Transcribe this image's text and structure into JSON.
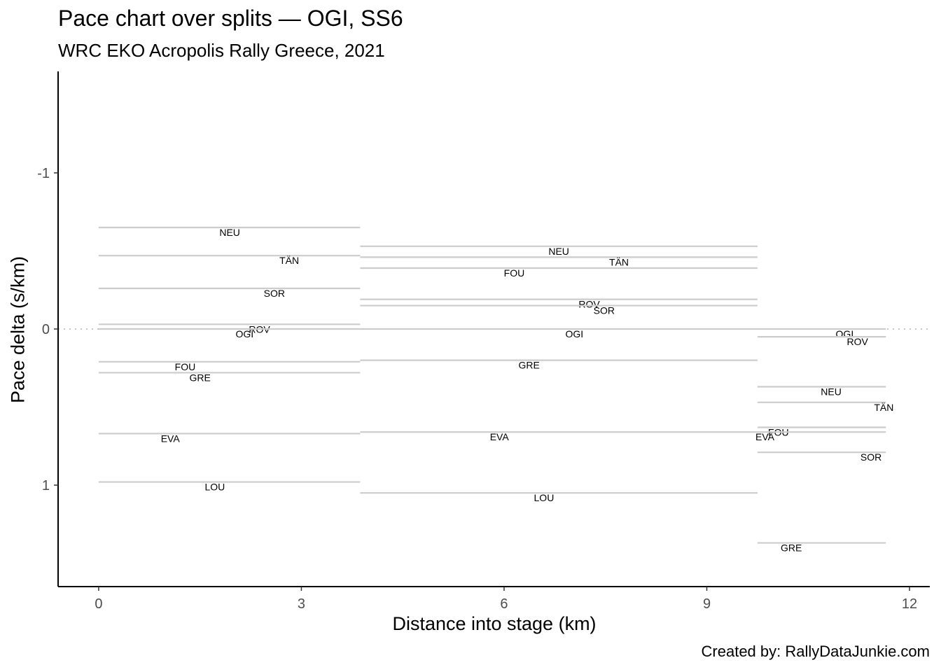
{
  "title": "Pace chart over splits — OGI, SS6",
  "subtitle": "WRC EKO Acropolis Rally Greece, 2021",
  "caption": "Created by: RallyDataJunkie.com",
  "chart_data": {
    "type": "line",
    "title": "Pace chart over splits — OGI, SS6",
    "subtitle": "WRC EKO Acropolis Rally Greece, 2021",
    "xlabel": "Distance into stage (km)",
    "ylabel": "Pace delta (s/km)",
    "xlim": [
      -0.6,
      12.3
    ],
    "ylim": [
      -1.65,
      1.65
    ],
    "y_reversed": true,
    "x_ticks": [
      0,
      3,
      6,
      9,
      12
    ],
    "x_tick_labels": [
      "0",
      "3",
      "6",
      "9",
      "12"
    ],
    "y_ticks": [
      -1,
      0,
      1
    ],
    "y_tick_labels": [
      "-1",
      "0",
      "1"
    ],
    "reference_line_y": 0,
    "grid": false,
    "legend": "none",
    "line_color": "#cccccc",
    "reference_line_color": "#c8c8c8",
    "splits": [
      {
        "x_start": 0.0,
        "x_end": 3.87,
        "drivers": [
          {
            "code": "NEU",
            "pace": -0.65,
            "label_x": 1.94
          },
          {
            "code": "TÄN",
            "pace": -0.47,
            "label_x": 2.82
          },
          {
            "code": "SOR",
            "pace": -0.26,
            "label_x": 2.6
          },
          {
            "code": "ROV",
            "pace": -0.03,
            "label_x": 2.38
          },
          {
            "code": "OGI",
            "pace": 0.0,
            "label_x": 2.16
          },
          {
            "code": "FOU",
            "pace": 0.21,
            "label_x": 1.28
          },
          {
            "code": "GRE",
            "pace": 0.28,
            "label_x": 1.5
          },
          {
            "code": "EVA",
            "pace": 0.67,
            "label_x": 1.06
          },
          {
            "code": "LOU",
            "pace": 0.98,
            "label_x": 1.72
          }
        ]
      },
      {
        "x_start": 3.87,
        "x_end": 9.75,
        "drivers": [
          {
            "code": "NEU",
            "pace": -0.53,
            "label_x": 6.81
          },
          {
            "code": "TÄN",
            "pace": -0.46,
            "label_x": 7.7
          },
          {
            "code": "FOU",
            "pace": -0.39,
            "label_x": 6.15
          },
          {
            "code": "ROV",
            "pace": -0.19,
            "label_x": 7.26
          },
          {
            "code": "SOR",
            "pace": -0.15,
            "label_x": 7.48
          },
          {
            "code": "OGI",
            "pace": 0.0,
            "label_x": 7.04
          },
          {
            "code": "GRE",
            "pace": 0.2,
            "label_x": 6.37
          },
          {
            "code": "EVA",
            "pace": 0.66,
            "label_x": 5.93
          },
          {
            "code": "LOU",
            "pace": 1.05,
            "label_x": 6.59
          }
        ]
      },
      {
        "x_start": 9.75,
        "x_end": 11.65,
        "drivers": [
          {
            "code": "OGI",
            "pace": 0.0,
            "label_x": 11.04
          },
          {
            "code": "ROV",
            "pace": 0.05,
            "label_x": 11.23
          },
          {
            "code": "NEU",
            "pace": 0.37,
            "label_x": 10.84
          },
          {
            "code": "TÄN",
            "pace": 0.47,
            "label_x": 11.62
          },
          {
            "code": "FOU",
            "pace": 0.63,
            "label_x": 10.06
          },
          {
            "code": "EVA",
            "pace": 0.66,
            "label_x": 9.86
          },
          {
            "code": "SOR",
            "pace": 0.79,
            "label_x": 11.43
          },
          {
            "code": "GRE",
            "pace": 1.37,
            "label_x": 10.25
          }
        ]
      }
    ]
  }
}
